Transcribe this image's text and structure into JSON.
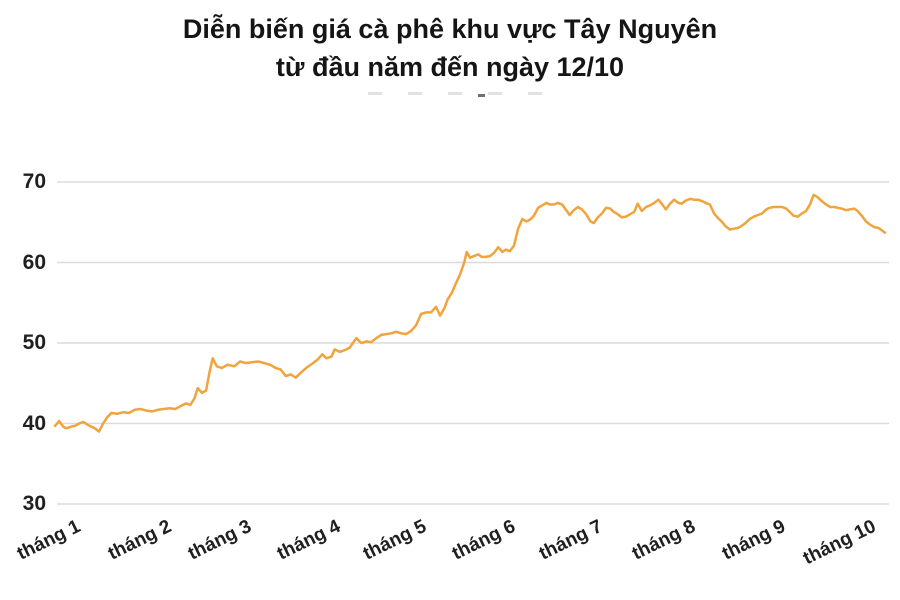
{
  "title": {
    "line1": "Diễn biến giá cà phê khu vực Tây Nguyên",
    "line2": "từ đầu năm đến ngày 12/10"
  },
  "colors": {
    "line": "#F1A33C",
    "grid": "#DBDBDB",
    "text": "#202020"
  },
  "chart_data": {
    "type": "line",
    "title": "Diễn biến giá cà phê khu vực Tây Nguyên từ đầu năm đến ngày 12/10",
    "xlabel": "",
    "ylabel": "",
    "ylim": [
      30,
      70
    ],
    "grid": true,
    "legend_position": "none",
    "y_ticks": [
      70,
      60,
      50,
      40,
      30
    ],
    "x_ticks": [
      {
        "label": "tháng 1",
        "pos": 0.024
      },
      {
        "label": "tháng 2",
        "pos": 0.133
      },
      {
        "label": "tháng 3",
        "pos": 0.229
      },
      {
        "label": "tháng 4",
        "pos": 0.337
      },
      {
        "label": "tháng 5",
        "pos": 0.44
      },
      {
        "label": "tháng 6",
        "pos": 0.548
      },
      {
        "label": "tháng 7",
        "pos": 0.653
      },
      {
        "label": "tháng 8",
        "pos": 0.765
      },
      {
        "label": "tháng 9",
        "pos": 0.873
      },
      {
        "label": "tháng 10",
        "pos": 0.982
      }
    ],
    "series": [
      {
        "color": "#F1A33C",
        "points": [
          [
            0.0,
            39.7
          ],
          [
            0.005,
            40.3
          ],
          [
            0.01,
            39.6
          ],
          [
            0.014,
            39.4
          ],
          [
            0.019,
            39.6
          ],
          [
            0.024,
            39.7
          ],
          [
            0.029,
            40.0
          ],
          [
            0.034,
            40.2
          ],
          [
            0.04,
            39.8
          ],
          [
            0.048,
            39.4
          ],
          [
            0.053,
            39.0
          ],
          [
            0.058,
            40.0
          ],
          [
            0.063,
            40.8
          ],
          [
            0.068,
            41.3
          ],
          [
            0.075,
            41.2
          ],
          [
            0.082,
            41.4
          ],
          [
            0.089,
            41.3
          ],
          [
            0.096,
            41.7
          ],
          [
            0.103,
            41.8
          ],
          [
            0.11,
            41.6
          ],
          [
            0.117,
            41.5
          ],
          [
            0.124,
            41.7
          ],
          [
            0.131,
            41.8
          ],
          [
            0.138,
            41.9
          ],
          [
            0.145,
            41.8
          ],
          [
            0.152,
            42.2
          ],
          [
            0.158,
            42.5
          ],
          [
            0.163,
            42.3
          ],
          [
            0.168,
            43.1
          ],
          [
            0.172,
            44.4
          ],
          [
            0.177,
            43.8
          ],
          [
            0.182,
            44.1
          ],
          [
            0.186,
            46.3
          ],
          [
            0.19,
            48.1
          ],
          [
            0.195,
            47.1
          ],
          [
            0.201,
            46.9
          ],
          [
            0.208,
            47.3
          ],
          [
            0.216,
            47.1
          ],
          [
            0.223,
            47.7
          ],
          [
            0.23,
            47.5
          ],
          [
            0.237,
            47.6
          ],
          [
            0.245,
            47.7
          ],
          [
            0.252,
            47.5
          ],
          [
            0.259,
            47.3
          ],
          [
            0.266,
            46.9
          ],
          [
            0.272,
            46.7
          ],
          [
            0.278,
            45.9
          ],
          [
            0.284,
            46.1
          ],
          [
            0.29,
            45.7
          ],
          [
            0.296,
            46.3
          ],
          [
            0.304,
            47.0
          ],
          [
            0.311,
            47.5
          ],
          [
            0.317,
            48.0
          ],
          [
            0.322,
            48.6
          ],
          [
            0.327,
            48.1
          ],
          [
            0.333,
            48.3
          ],
          [
            0.337,
            49.2
          ],
          [
            0.343,
            48.9
          ],
          [
            0.349,
            49.1
          ],
          [
            0.355,
            49.4
          ],
          [
            0.363,
            50.6
          ],
          [
            0.369,
            50.0
          ],
          [
            0.375,
            50.2
          ],
          [
            0.381,
            50.1
          ],
          [
            0.387,
            50.6
          ],
          [
            0.393,
            51.0
          ],
          [
            0.399,
            51.1
          ],
          [
            0.405,
            51.2
          ],
          [
            0.411,
            51.4
          ],
          [
            0.417,
            51.2
          ],
          [
            0.423,
            51.1
          ],
          [
            0.429,
            51.5
          ],
          [
            0.435,
            52.2
          ],
          [
            0.441,
            53.6
          ],
          [
            0.447,
            53.8
          ],
          [
            0.453,
            53.8
          ],
          [
            0.459,
            54.5
          ],
          [
            0.464,
            53.4
          ],
          [
            0.469,
            54.3
          ],
          [
            0.473,
            55.4
          ],
          [
            0.478,
            56.2
          ],
          [
            0.483,
            57.4
          ],
          [
            0.488,
            58.5
          ],
          [
            0.493,
            60.0
          ],
          [
            0.496,
            61.3
          ],
          [
            0.5,
            60.6
          ],
          [
            0.505,
            60.8
          ],
          [
            0.51,
            61.0
          ],
          [
            0.514,
            60.7
          ],
          [
            0.519,
            60.7
          ],
          [
            0.524,
            60.8
          ],
          [
            0.529,
            61.2
          ],
          [
            0.534,
            61.9
          ],
          [
            0.539,
            61.3
          ],
          [
            0.543,
            61.6
          ],
          [
            0.548,
            61.4
          ],
          [
            0.553,
            62.1
          ],
          [
            0.558,
            64.2
          ],
          [
            0.563,
            65.4
          ],
          [
            0.568,
            65.1
          ],
          [
            0.572,
            65.3
          ],
          [
            0.577,
            65.8
          ],
          [
            0.582,
            66.8
          ],
          [
            0.587,
            67.1
          ],
          [
            0.592,
            67.4
          ],
          [
            0.596,
            67.2
          ],
          [
            0.601,
            67.2
          ],
          [
            0.606,
            67.4
          ],
          [
            0.611,
            67.2
          ],
          [
            0.616,
            66.5
          ],
          [
            0.62,
            65.9
          ],
          [
            0.625,
            66.5
          ],
          [
            0.63,
            66.9
          ],
          [
            0.635,
            66.6
          ],
          [
            0.64,
            66.0
          ],
          [
            0.645,
            65.1
          ],
          [
            0.649,
            64.9
          ],
          [
            0.654,
            65.6
          ],
          [
            0.659,
            66.1
          ],
          [
            0.664,
            66.8
          ],
          [
            0.669,
            66.7
          ],
          [
            0.673,
            66.3
          ],
          [
            0.678,
            66.0
          ],
          [
            0.683,
            65.6
          ],
          [
            0.688,
            65.7
          ],
          [
            0.693,
            66.0
          ],
          [
            0.698,
            66.3
          ],
          [
            0.702,
            67.3
          ],
          [
            0.707,
            66.4
          ],
          [
            0.712,
            66.9
          ],
          [
            0.717,
            67.1
          ],
          [
            0.722,
            67.4
          ],
          [
            0.727,
            67.8
          ],
          [
            0.731,
            67.3
          ],
          [
            0.736,
            66.6
          ],
          [
            0.741,
            67.3
          ],
          [
            0.746,
            67.8
          ],
          [
            0.751,
            67.4
          ],
          [
            0.755,
            67.3
          ],
          [
            0.76,
            67.7
          ],
          [
            0.765,
            67.9
          ],
          [
            0.77,
            67.8
          ],
          [
            0.775,
            67.8
          ],
          [
            0.78,
            67.6
          ],
          [
            0.784,
            67.4
          ],
          [
            0.789,
            67.2
          ],
          [
            0.794,
            66.1
          ],
          [
            0.799,
            65.5
          ],
          [
            0.804,
            65.0
          ],
          [
            0.808,
            64.5
          ],
          [
            0.813,
            64.1
          ],
          [
            0.818,
            64.2
          ],
          [
            0.823,
            64.3
          ],
          [
            0.828,
            64.6
          ],
          [
            0.833,
            65.0
          ],
          [
            0.837,
            65.4
          ],
          [
            0.842,
            65.7
          ],
          [
            0.847,
            65.9
          ],
          [
            0.852,
            66.1
          ],
          [
            0.857,
            66.6
          ],
          [
            0.861,
            66.8
          ],
          [
            0.866,
            66.9
          ],
          [
            0.871,
            66.9
          ],
          [
            0.876,
            66.9
          ],
          [
            0.881,
            66.7
          ],
          [
            0.886,
            66.2
          ],
          [
            0.89,
            65.8
          ],
          [
            0.895,
            65.7
          ],
          [
            0.9,
            66.1
          ],
          [
            0.905,
            66.4
          ],
          [
            0.91,
            67.3
          ],
          [
            0.914,
            68.4
          ],
          [
            0.919,
            68.1
          ],
          [
            0.924,
            67.6
          ],
          [
            0.929,
            67.2
          ],
          [
            0.934,
            66.9
          ],
          [
            0.939,
            66.9
          ],
          [
            0.943,
            66.8
          ],
          [
            0.948,
            66.7
          ],
          [
            0.953,
            66.5
          ],
          [
            0.958,
            66.6
          ],
          [
            0.963,
            66.7
          ],
          [
            0.967,
            66.4
          ],
          [
            0.972,
            65.8
          ],
          [
            0.977,
            65.1
          ],
          [
            0.982,
            64.7
          ],
          [
            0.987,
            64.4
          ],
          [
            0.992,
            64.3
          ],
          [
            0.996,
            64.0
          ],
          [
            1.0,
            63.7
          ]
        ]
      }
    ]
  }
}
